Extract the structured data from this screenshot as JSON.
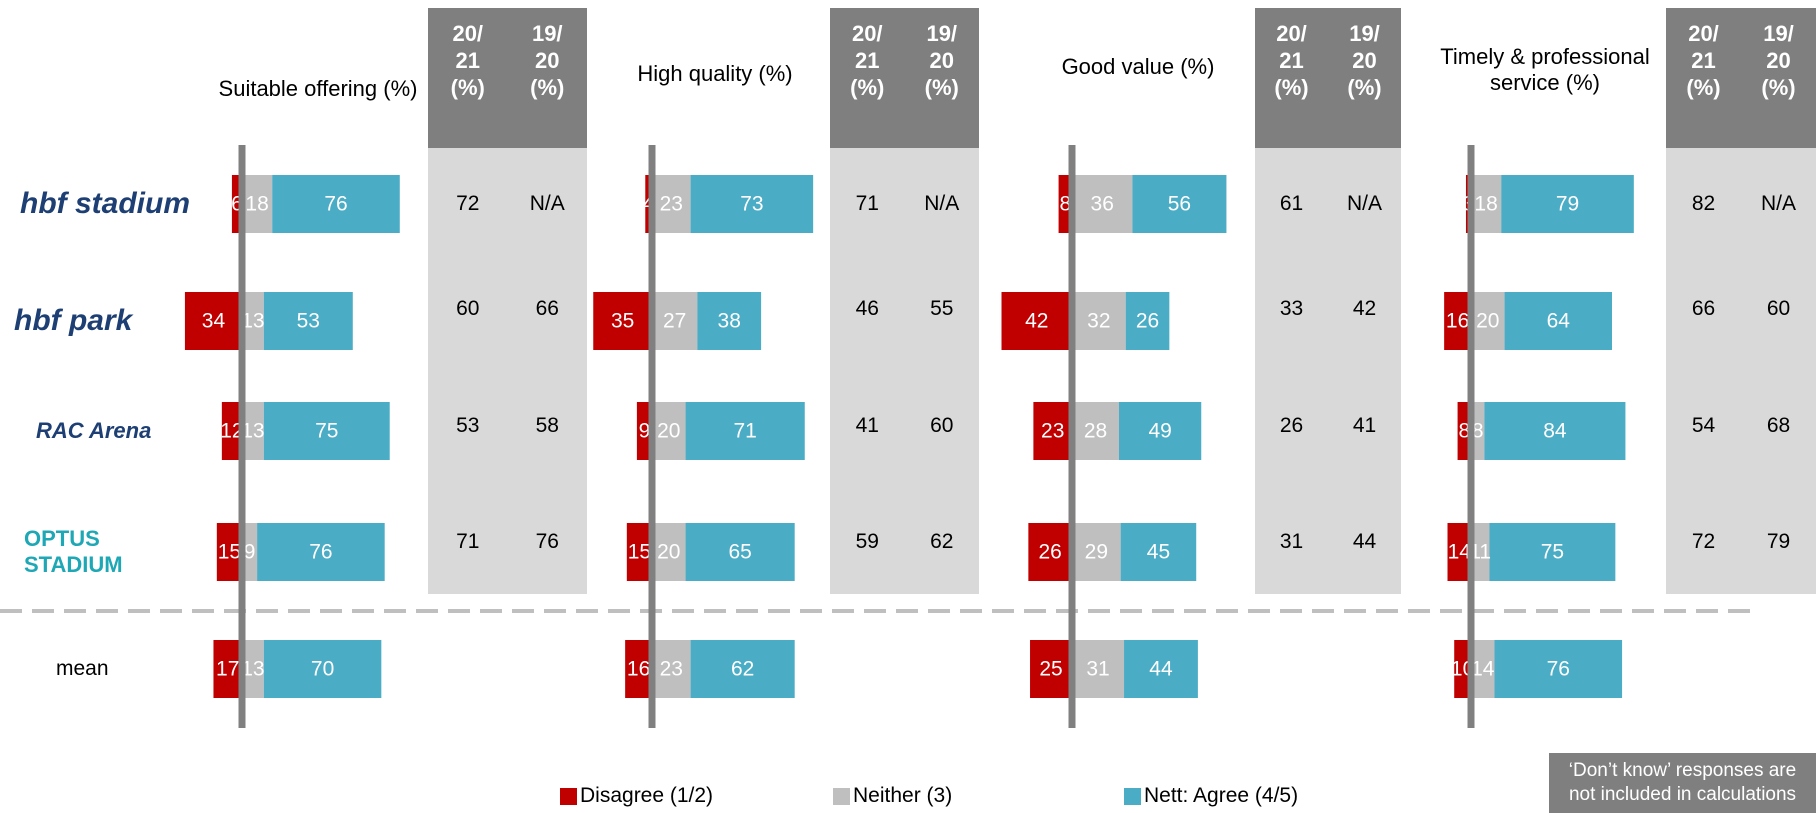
{
  "categories": [
    "hbf stadium",
    "hbf park",
    "RAC Arena",
    "OPTUS\nSTADIUM",
    "mean"
  ],
  "legend": [
    {
      "name": "Disagree (1/2)",
      "color": "#c00000"
    },
    {
      "name": "Neither (3)",
      "color": "#bfbfbf"
    },
    {
      "name": "Nett: Agree (4/5)",
      "color": "#4bacc6"
    }
  ],
  "note": "‘Don’t know’ responses are not included in calculations",
  "chart_data": [
    {
      "type": "bar",
      "title": "Suitable offering (%)",
      "xlim": [
        -50,
        90
      ],
      "series": [
        {
          "values": [
            6,
            34,
            12,
            15,
            17
          ]
        },
        {
          "values": [
            18,
            13,
            13,
            9,
            13
          ]
        },
        {
          "values": [
            76,
            53,
            75,
            76,
            70
          ]
        }
      ],
      "table": {
        "columns": [
          "20/\n21\n(%)",
          "19/\n20\n(%)"
        ],
        "rows": [
          [
            72,
            "N/A"
          ],
          [
            60,
            66
          ],
          [
            53,
            58
          ],
          [
            71,
            76
          ]
        ]
      }
    },
    {
      "type": "bar",
      "title": "High quality (%)",
      "xlim": [
        -50,
        90
      ],
      "series": [
        {
          "values": [
            4,
            35,
            9,
            15,
            16
          ]
        },
        {
          "values": [
            23,
            27,
            20,
            20,
            23
          ]
        },
        {
          "values": [
            73,
            38,
            71,
            65,
            62
          ]
        }
      ],
      "table": {
        "columns": [
          "20/\n21\n(%)",
          "19/\n20\n(%)"
        ],
        "rows": [
          [
            71,
            "N/A"
          ],
          [
            46,
            55
          ],
          [
            41,
            60
          ],
          [
            59,
            62
          ]
        ]
      }
    },
    {
      "type": "bar",
      "title": "Good value (%)",
      "xlim": [
        -50,
        90
      ],
      "series": [
        {
          "values": [
            8,
            42,
            23,
            26,
            25
          ]
        },
        {
          "values": [
            36,
            32,
            28,
            29,
            31
          ]
        },
        {
          "values": [
            56,
            26,
            49,
            45,
            44
          ]
        }
      ],
      "table": {
        "columns": [
          "20/\n21\n(%)",
          "19/\n20\n(%)"
        ],
        "rows": [
          [
            61,
            "N/A"
          ],
          [
            33,
            42
          ],
          [
            26,
            41
          ],
          [
            31,
            44
          ]
        ]
      }
    },
    {
      "type": "bar",
      "title": "Timely & professional service (%)",
      "xlim": [
        -50,
        90
      ],
      "series": [
        {
          "values": [
            3,
            16,
            8,
            14,
            10
          ]
        },
        {
          "values": [
            18,
            20,
            8,
            11,
            14
          ]
        },
        {
          "values": [
            79,
            64,
            84,
            75,
            76
          ]
        }
      ],
      "table": {
        "columns": [
          "20/\n21\n(%)",
          "19/\n20\n(%)"
        ],
        "rows": [
          [
            82,
            "N/A"
          ],
          [
            66,
            60
          ],
          [
            54,
            68
          ],
          [
            72,
            79
          ]
        ]
      }
    }
  ]
}
